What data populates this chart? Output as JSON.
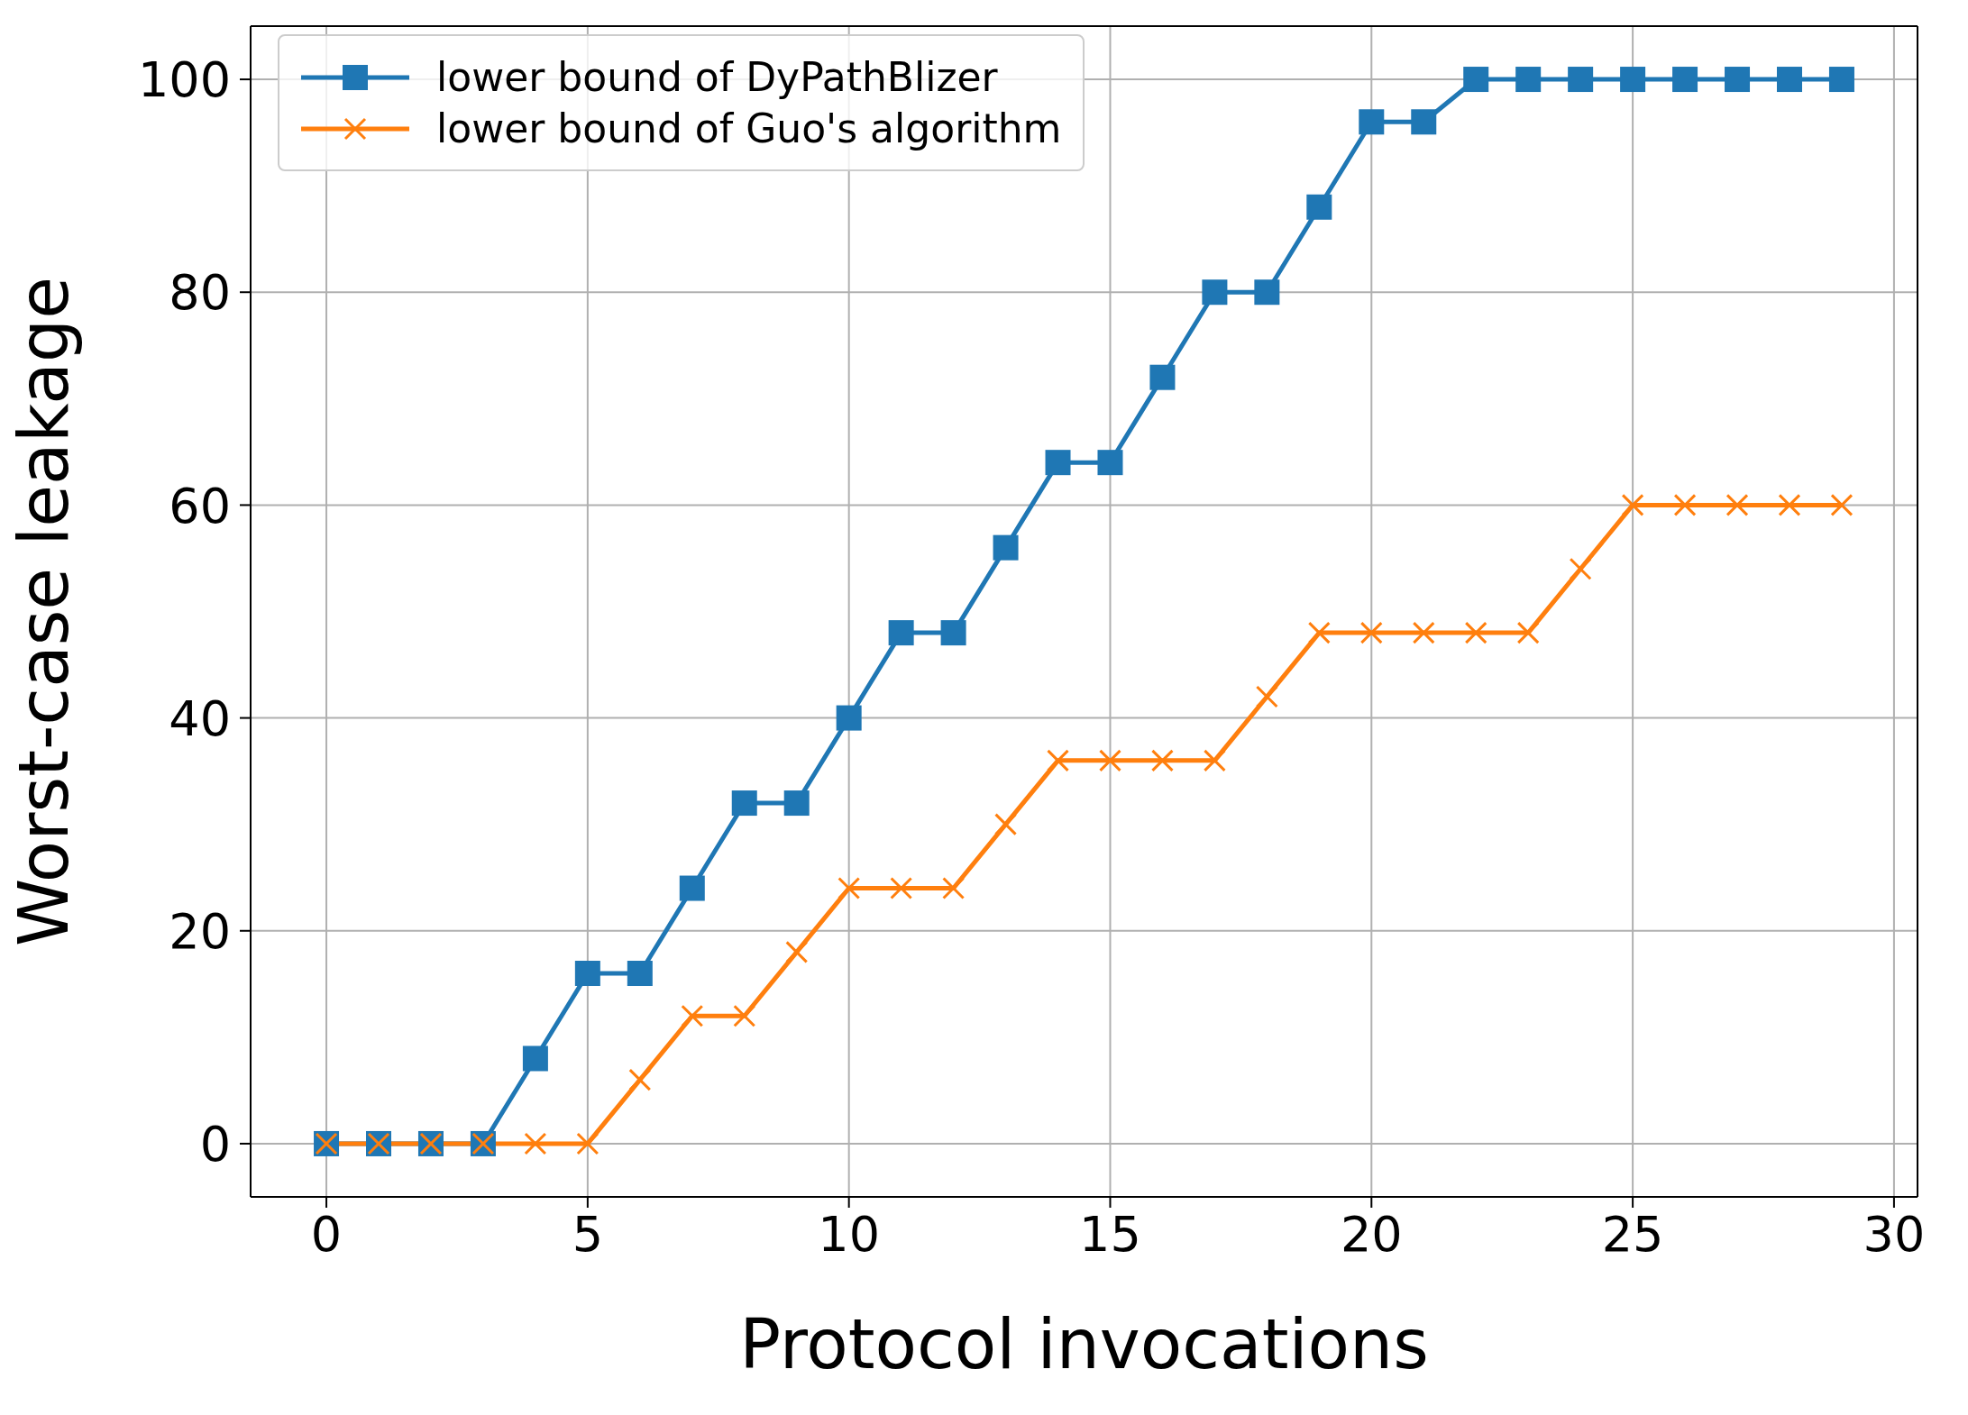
{
  "chart_data": {
    "type": "line",
    "xlabel": "Protocol invocations",
    "ylabel": "Worst-case leakage",
    "x": [
      0,
      1,
      2,
      3,
      4,
      5,
      6,
      7,
      8,
      9,
      10,
      11,
      12,
      13,
      14,
      15,
      16,
      17,
      18,
      19,
      20,
      21,
      22,
      23,
      24,
      25,
      26,
      27,
      28,
      29
    ],
    "series": [
      {
        "name": "lower bound of DyPathBlizer",
        "color": "#1f77b4",
        "marker": "square",
        "values": [
          0,
          0,
          0,
          0,
          8,
          16,
          16,
          24,
          32,
          32,
          40,
          48,
          48,
          56,
          64,
          64,
          72,
          80,
          80,
          88,
          96,
          96,
          100,
          100,
          100,
          100,
          100,
          100,
          100,
          100
        ]
      },
      {
        "name": "lower bound of Guo's algorithm",
        "color": "#ff7f0e",
        "marker": "cross",
        "values": [
          0,
          0,
          0,
          0,
          0,
          0,
          6,
          12,
          12,
          18,
          24,
          24,
          24,
          30,
          36,
          36,
          36,
          36,
          42,
          48,
          48,
          48,
          48,
          48,
          54,
          60,
          60,
          60,
          60,
          60
        ]
      }
    ],
    "xlim": [
      -1.45,
      30.45
    ],
    "xticks": [
      0,
      5,
      10,
      15,
      20,
      25,
      30
    ],
    "ylim": [
      -5,
      105
    ],
    "yticks": [
      0,
      20,
      40,
      60,
      80,
      100
    ],
    "grid": true,
    "legend": "top left",
    "line_style": "solid"
  }
}
